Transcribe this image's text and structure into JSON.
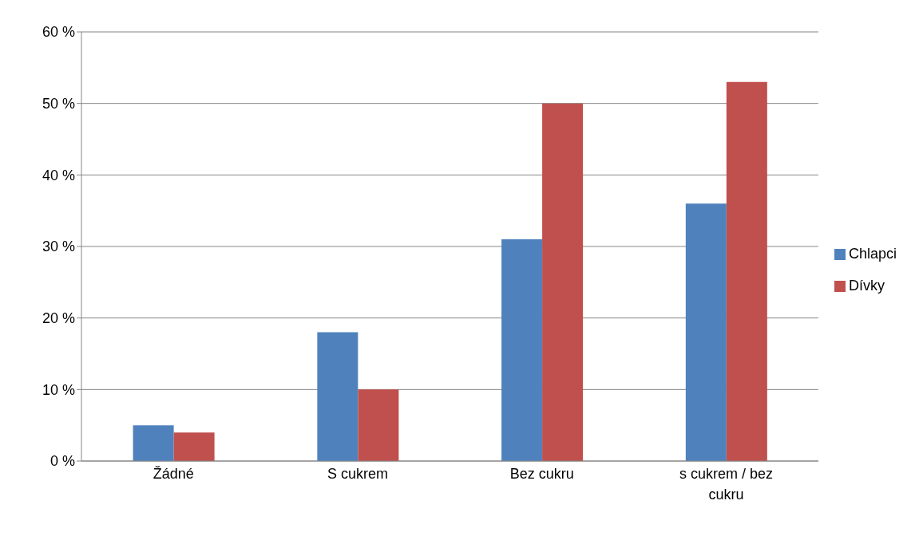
{
  "chart_data": {
    "type": "bar",
    "categories": [
      "Žádné",
      "S cukrem",
      "Bez cukru",
      "s cukrem / bez cukru"
    ],
    "series": [
      {
        "name": "Chlapci",
        "color": "#4f81bd",
        "values": [
          5,
          18,
          31,
          36
        ]
      },
      {
        "name": "Dívky",
        "color": "#c0504d",
        "values": [
          4,
          10,
          50,
          53
        ]
      }
    ],
    "ylim": [
      0,
      60
    ],
    "yticks": [
      {
        "value": 0,
        "label": "0 %"
      },
      {
        "value": 10,
        "label": "10 %"
      },
      {
        "value": 20,
        "label": "20 %"
      },
      {
        "value": 30,
        "label": "30 %"
      },
      {
        "value": 40,
        "label": "40 %"
      },
      {
        "value": 50,
        "label": "50 %"
      },
      {
        "value": 60,
        "label": "60 %"
      }
    ],
    "grid": "y",
    "legend": "right"
  }
}
